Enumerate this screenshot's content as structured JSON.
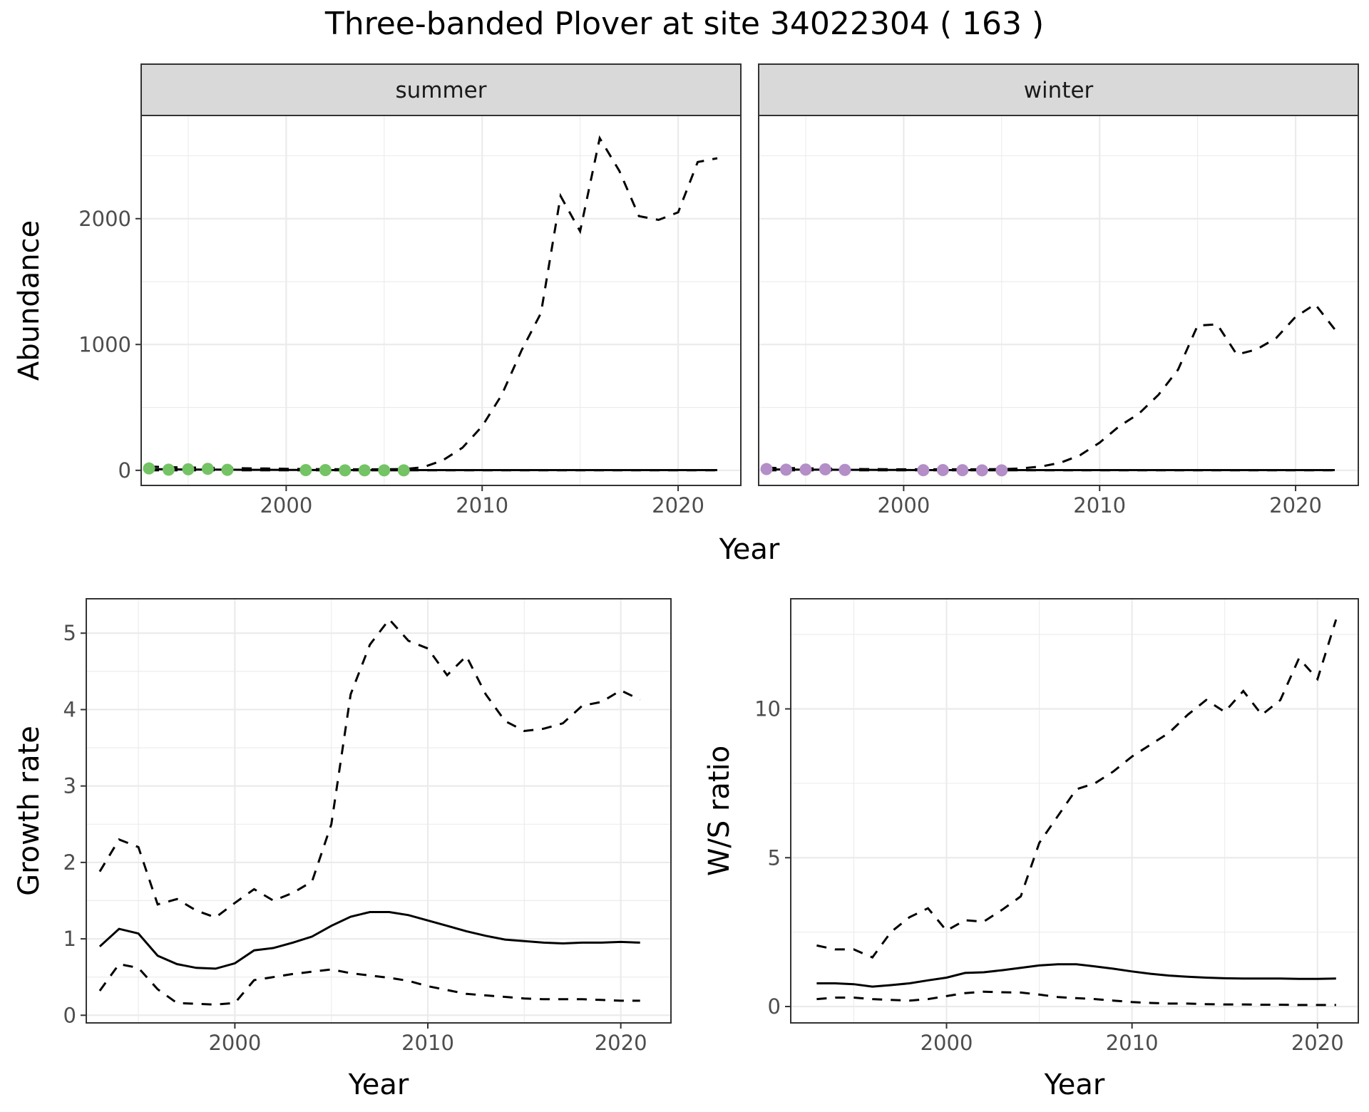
{
  "title": "Three-banded Plover at site 34022304 ( 163 )",
  "chart_data": [
    {
      "type": "line",
      "panel": "summer",
      "strip": "summer",
      "xlabel": "Year",
      "ylabel": "Abundance",
      "xlim": [
        1992.6,
        2023.2
      ],
      "ylim": [
        -120,
        2820
      ],
      "x_ticks": [
        2000,
        2010,
        2020
      ],
      "y_ticks": [
        0,
        1000,
        2000
      ],
      "point_color": "#74c365",
      "series": [
        {
          "role": "estimate",
          "style": "solid",
          "x": [
            1993,
            1994,
            1995,
            1996,
            1997,
            1998,
            1999,
            2000,
            2001,
            2002,
            2003,
            2004,
            2005,
            2006,
            2007,
            2008,
            2009,
            2010,
            2011,
            2012,
            2013,
            2014,
            2015,
            2016,
            2017,
            2018,
            2019,
            2020,
            2021,
            2022
          ],
          "y": [
            10,
            8,
            6,
            6,
            5,
            4,
            4,
            3,
            3,
            2,
            2,
            2,
            2,
            2,
            2,
            2,
            2,
            2,
            2,
            2,
            2,
            2,
            2,
            2,
            2,
            2,
            2,
            2,
            2,
            2
          ]
        },
        {
          "role": "upper",
          "style": "dashed",
          "x": [
            1993,
            1994,
            1995,
            1996,
            1997,
            1998,
            1999,
            2000,
            2001,
            2002,
            2003,
            2004,
            2005,
            2006,
            2007,
            2008,
            2009,
            2010,
            2011,
            2012,
            2013,
            2014,
            2015,
            2016,
            2017,
            2018,
            2019,
            2020,
            2021,
            2022
          ],
          "y": [
            30,
            25,
            22,
            20,
            18,
            16,
            14,
            12,
            10,
            9,
            8,
            8,
            8,
            10,
            25,
            80,
            180,
            350,
            600,
            950,
            1250,
            2180,
            1900,
            2640,
            2380,
            2020,
            1990,
            2050,
            2450,
            2480
          ]
        },
        {
          "role": "lower",
          "style": "dashed",
          "x": [
            1993,
            2000,
            2010,
            2022
          ],
          "y": [
            0,
            0,
            0,
            0
          ]
        }
      ],
      "points": {
        "x": [
          1993,
          1994,
          1995,
          1996,
          1997,
          2001,
          2002,
          2003,
          2004,
          2005,
          2006
        ],
        "y": [
          15,
          5,
          8,
          12,
          4,
          2,
          2,
          0,
          0,
          0,
          0
        ]
      }
    },
    {
      "type": "line",
      "panel": "winter",
      "strip": "winter",
      "xlabel": "Year",
      "ylabel": "",
      "xlim": [
        1992.6,
        2023.2
      ],
      "ylim": [
        -120,
        2820
      ],
      "x_ticks": [
        2000,
        2010,
        2020
      ],
      "y_ticks": [
        0,
        1000,
        2000
      ],
      "point_color": "#b48ec7",
      "series": [
        {
          "role": "estimate",
          "style": "solid",
          "x": [
            1993,
            1994,
            1995,
            1996,
            1997,
            1998,
            1999,
            2000,
            2001,
            2002,
            2003,
            2004,
            2005,
            2006,
            2007,
            2008,
            2009,
            2010,
            2011,
            2012,
            2013,
            2014,
            2015,
            2016,
            2017,
            2018,
            2019,
            2020,
            2021,
            2022
          ],
          "y": [
            8,
            6,
            5,
            5,
            4,
            4,
            3,
            3,
            2,
            2,
            2,
            2,
            2,
            2,
            2,
            2,
            2,
            2,
            2,
            2,
            2,
            2,
            2,
            2,
            2,
            2,
            2,
            2,
            2,
            2
          ]
        },
        {
          "role": "upper",
          "style": "dashed",
          "x": [
            1993,
            1994,
            1995,
            1996,
            1997,
            1998,
            1999,
            2000,
            2001,
            2002,
            2003,
            2004,
            2005,
            2006,
            2007,
            2008,
            2009,
            2010,
            2011,
            2012,
            2013,
            2014,
            2015,
            2016,
            2017,
            2018,
            2019,
            2020,
            2021,
            2022
          ],
          "y": [
            20,
            18,
            16,
            14,
            12,
            10,
            9,
            8,
            8,
            8,
            8,
            8,
            10,
            15,
            30,
            60,
            120,
            220,
            350,
            450,
            600,
            800,
            1150,
            1160,
            920,
            960,
            1050,
            1220,
            1320,
            1120
          ]
        },
        {
          "role": "lower",
          "style": "dashed",
          "x": [
            1993,
            2000,
            2010,
            2022
          ],
          "y": [
            0,
            0,
            0,
            0
          ]
        }
      ],
      "points": {
        "x": [
          1993,
          1994,
          1995,
          1996,
          1997,
          2001,
          2002,
          2003,
          2004,
          2005
        ],
        "y": [
          10,
          5,
          6,
          8,
          3,
          1,
          2,
          1,
          0,
          0
        ]
      }
    },
    {
      "type": "line",
      "panel": "growth",
      "xlabel": "Year",
      "ylabel": "Growth rate",
      "xlim": [
        1992.3,
        2022.6
      ],
      "ylim": [
        -0.1,
        5.45
      ],
      "x_ticks": [
        2000,
        2010,
        2020
      ],
      "y_ticks": [
        0,
        1,
        2,
        3,
        4,
        5
      ],
      "series": [
        {
          "role": "estimate",
          "style": "solid",
          "x": [
            1993,
            1994,
            1995,
            1996,
            1997,
            1998,
            1999,
            2000,
            2001,
            2002,
            2003,
            2004,
            2005,
            2006,
            2007,
            2008,
            2009,
            2010,
            2011,
            2012,
            2013,
            2014,
            2015,
            2016,
            2017,
            2018,
            2019,
            2020,
            2021
          ],
          "y": [
            0.9,
            1.13,
            1.07,
            0.78,
            0.67,
            0.62,
            0.61,
            0.68,
            0.85,
            0.88,
            0.95,
            1.03,
            1.17,
            1.29,
            1.35,
            1.35,
            1.31,
            1.24,
            1.17,
            1.1,
            1.04,
            0.99,
            0.97,
            0.95,
            0.94,
            0.95,
            0.95,
            0.96,
            0.95
          ]
        },
        {
          "role": "upper",
          "style": "dashed",
          "x": [
            1993,
            1994,
            1995,
            1996,
            1997,
            1998,
            1999,
            2000,
            2001,
            2002,
            2003,
            2004,
            2005,
            2006,
            2007,
            2008,
            2009,
            2010,
            2011,
            2012,
            2013,
            2014,
            2015,
            2016,
            2017,
            2018,
            2019,
            2020,
            2021
          ],
          "y": [
            1.88,
            2.3,
            2.2,
            1.45,
            1.52,
            1.37,
            1.28,
            1.47,
            1.65,
            1.5,
            1.6,
            1.75,
            2.5,
            4.2,
            4.85,
            5.18,
            4.9,
            4.8,
            4.45,
            4.7,
            4.2,
            3.85,
            3.72,
            3.75,
            3.82,
            4.05,
            4.1,
            4.25,
            4.13
          ]
        },
        {
          "role": "lower",
          "style": "dashed",
          "x": [
            1993,
            1994,
            1995,
            1996,
            1997,
            1998,
            1999,
            2000,
            2001,
            2002,
            2003,
            2004,
            2005,
            2006,
            2007,
            2008,
            2009,
            2010,
            2011,
            2012,
            2013,
            2014,
            2015,
            2016,
            2017,
            2018,
            2019,
            2020,
            2021
          ],
          "y": [
            0.32,
            0.67,
            0.62,
            0.34,
            0.16,
            0.15,
            0.14,
            0.16,
            0.46,
            0.5,
            0.54,
            0.57,
            0.6,
            0.55,
            0.52,
            0.49,
            0.45,
            0.38,
            0.33,
            0.28,
            0.26,
            0.24,
            0.22,
            0.21,
            0.21,
            0.21,
            0.2,
            0.19,
            0.19
          ]
        }
      ]
    },
    {
      "type": "line",
      "panel": "ratio",
      "xlabel": "Year",
      "ylabel": "W/S ratio",
      "xlim": [
        1991.6,
        2022.2
      ],
      "ylim": [
        -0.55,
        13.7
      ],
      "x_ticks": [
        2000,
        2010,
        2020
      ],
      "y_ticks": [
        0,
        5,
        10
      ],
      "series": [
        {
          "role": "estimate",
          "style": "solid",
          "x": [
            1993,
            1994,
            1995,
            1996,
            1997,
            1998,
            1999,
            2000,
            2001,
            2002,
            2003,
            2004,
            2005,
            2006,
            2007,
            2008,
            2009,
            2010,
            2011,
            2012,
            2013,
            2014,
            2015,
            2016,
            2017,
            2018,
            2019,
            2020,
            2021
          ],
          "y": [
            0.78,
            0.78,
            0.75,
            0.67,
            0.72,
            0.78,
            0.88,
            0.97,
            1.13,
            1.15,
            1.22,
            1.3,
            1.38,
            1.42,
            1.42,
            1.35,
            1.27,
            1.18,
            1.1,
            1.04,
            1.0,
            0.97,
            0.95,
            0.94,
            0.94,
            0.94,
            0.93,
            0.93,
            0.94
          ]
        },
        {
          "role": "upper",
          "style": "dashed",
          "x": [
            1993,
            1994,
            1995,
            1996,
            1997,
            1998,
            1999,
            2000,
            2001,
            2002,
            2003,
            2004,
            2005,
            2006,
            2007,
            2008,
            2009,
            2010,
            2011,
            2012,
            2013,
            2014,
            2015,
            2016,
            2017,
            2018,
            2019,
            2020,
            2021
          ],
          "y": [
            2.05,
            1.92,
            1.92,
            1.65,
            2.5,
            3.0,
            3.3,
            2.55,
            2.9,
            2.85,
            3.25,
            3.7,
            5.5,
            6.4,
            7.3,
            7.5,
            7.9,
            8.4,
            8.8,
            9.2,
            9.8,
            10.3,
            9.9,
            10.6,
            9.8,
            10.3,
            11.7,
            11.0,
            13.0
          ]
        },
        {
          "role": "lower",
          "style": "dashed",
          "x": [
            1993,
            1994,
            1995,
            1996,
            1997,
            1998,
            1999,
            2000,
            2001,
            2002,
            2003,
            2004,
            2005,
            2006,
            2007,
            2008,
            2009,
            2010,
            2011,
            2012,
            2013,
            2014,
            2015,
            2016,
            2017,
            2018,
            2019,
            2020,
            2021
          ],
          "y": [
            0.25,
            0.3,
            0.3,
            0.25,
            0.22,
            0.2,
            0.25,
            0.35,
            0.45,
            0.5,
            0.48,
            0.47,
            0.4,
            0.32,
            0.28,
            0.25,
            0.2,
            0.15,
            0.12,
            0.1,
            0.1,
            0.08,
            0.07,
            0.07,
            0.06,
            0.06,
            0.05,
            0.05,
            0.05
          ]
        }
      ]
    }
  ]
}
